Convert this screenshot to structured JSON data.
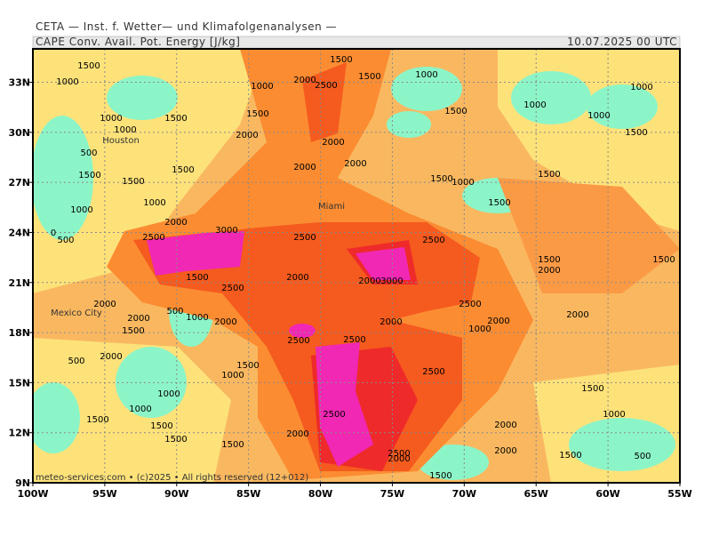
{
  "header": {
    "title": "CETA — Inst. f. Wetter— und Klimafolgenanalysen —",
    "product": "CAPE  Conv. Avail. Pot. Energy [J/kg]",
    "valid_time": "10.07.2025 00 UTC"
  },
  "map": {
    "lon_ticks": [
      {
        "value": -100,
        "label": "100W"
      },
      {
        "value": -95,
        "label": "95W"
      },
      {
        "value": -90,
        "label": "90W"
      },
      {
        "value": -85,
        "label": "85W"
      },
      {
        "value": -80,
        "label": "80W"
      },
      {
        "value": -75,
        "label": "75W"
      },
      {
        "value": -70,
        "label": "70W"
      },
      {
        "value": -65,
        "label": "65W"
      },
      {
        "value": -60,
        "label": "60W"
      },
      {
        "value": -55,
        "label": "55W"
      }
    ],
    "lat_ticks": [
      {
        "value": 9,
        "label": "9N"
      },
      {
        "value": 12,
        "label": "12N"
      },
      {
        "value": 15,
        "label": "15N"
      },
      {
        "value": 18,
        "label": "18N"
      },
      {
        "value": 21,
        "label": "21N"
      },
      {
        "value": 24,
        "label": "24N"
      },
      {
        "value": 27,
        "label": "27N"
      },
      {
        "value": 30,
        "label": "30N"
      },
      {
        "value": 33,
        "label": "33N"
      }
    ],
    "cities": [
      "Houston",
      "Miami",
      "Mexico City"
    ],
    "contour_labels": [
      "1500",
      "1000",
      "1500",
      "2000",
      "2500",
      "1500",
      "1000",
      "1000",
      "1000",
      "1000",
      "1000",
      "1500",
      "1500",
      "1000",
      "1500",
      "1000",
      "1500",
      "2000",
      "2000",
      "500",
      "1500",
      "1500",
      "1500",
      "2000",
      "2000",
      "1500",
      "1000",
      "1500",
      "1000",
      "1000",
      "1500",
      "2000",
      "0",
      "500",
      "2500",
      "3000",
      "2500",
      "2500",
      "1500",
      "1500",
      "2000",
      "1500",
      "2500",
      "2000",
      "2000",
      "3000",
      "2000",
      "2500",
      "2000",
      "2000",
      "500",
      "1000",
      "2000",
      "2000",
      "2000",
      "1500",
      "1000",
      "2500",
      "2500",
      "2000",
      "500",
      "1500",
      "1000",
      "2500",
      "1500",
      "1000",
      "1000",
      "2500",
      "1000",
      "1500",
      "1500",
      "2000",
      "2000",
      "1500",
      "1500",
      "2000",
      "2500",
      "2000",
      "1500",
      "500",
      "1500"
    ],
    "footer": "meteo-services.com • (c)2025 • All rights reserved (12+012)"
  }
}
